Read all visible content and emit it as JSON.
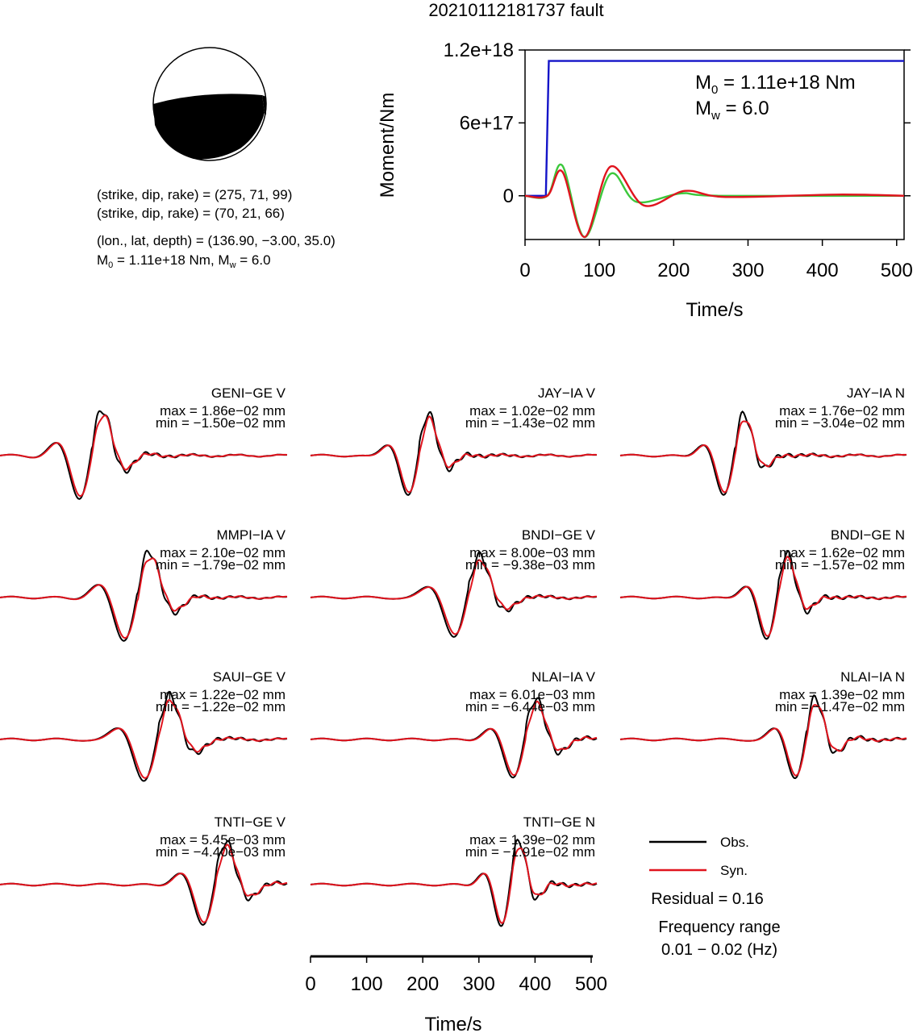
{
  "title": "20210112181737 fault",
  "mechanism": {
    "line1": "(strike, dip, rake) = (275, 71, 99)",
    "line2": "(strike, dip, rake) = (70, 21, 66)",
    "line3": "(lon., lat, depth) = (136.90, −3.00, 35.0)",
    "m0_prefix": "M",
    "m0_sub": "0",
    "m0_text": " = 1.11e+18 Nm, M",
    "mw_sub": "w",
    "mw_text": " = 6.0"
  },
  "stf": {
    "ylabel": "Moment/Nm",
    "xlabel": "Time/s",
    "yticks": [
      "0",
      "6e+17",
      "1.2e+18"
    ],
    "ytick_values": [
      0,
      6e+17,
      1.2e+18
    ],
    "xticks": [
      "0",
      "100",
      "200",
      "300",
      "400",
      "500"
    ],
    "m0_label_prefix": "M",
    "m0_label_sub": "0",
    "m0_label_rest": " = 1.11e+18 Nm",
    "mw_label_prefix": "M",
    "mw_label_sub": "w",
    "mw_label_rest": " = 6.0"
  },
  "waveforms_axis": {
    "xlabel": "Time/s",
    "xticks": [
      "0",
      "100",
      "200",
      "300",
      "400",
      "500"
    ]
  },
  "stations": [
    {
      "name": "GENI−GE V",
      "max": "max = 1.86e−02 mm",
      "min": "min = −1.50e−02 mm"
    },
    {
      "name": "JAY−IA V",
      "max": "max = 1.02e−02 mm",
      "min": "min = −1.43e−02 mm"
    },
    {
      "name": "JAY−IA N",
      "max": "max = 1.76e−02 mm",
      "min": "min = −3.04e−02 mm"
    },
    {
      "name": "MMPI−IA V",
      "max": "max = 2.10e−02 mm",
      "min": "min = −1.79e−02 mm"
    },
    {
      "name": "BNDI−GE V",
      "max": "max = 8.00e−03 mm",
      "min": "min = −9.38e−03 mm"
    },
    {
      "name": "BNDI−GE N",
      "max": "max = 1.62e−02 mm",
      "min": "min = −1.57e−02 mm"
    },
    {
      "name": "SAUI−GE V",
      "max": "max = 1.22e−02 mm",
      "min": "min = −1.22e−02 mm"
    },
    {
      "name": "NLAI−IA V",
      "max": "max = 6.01e−03 mm",
      "min": "min = −6.44e−03 mm"
    },
    {
      "name": "NLAI−IA N",
      "max": "max = 1.39e−02 mm",
      "min": "min = −1.47e−02 mm"
    },
    {
      "name": "TNTI−GE V",
      "max": "max = 5.45e−03 mm",
      "min": "min = −4.40e−03 mm"
    },
    {
      "name": "TNTI−GE N",
      "max": "max = 1.39e−02 mm",
      "min": "min = −1.91e−02 mm"
    }
  ],
  "legend": {
    "obs_label": "Obs.",
    "syn_label": "Syn.",
    "obs_color": "#000000",
    "syn_color": "#e0141e",
    "residual": "Residual = 0.16",
    "freq_title": "Frequency range",
    "freq_range": "0.01 − 0.02 (Hz)"
  },
  "chart_data": [
    {
      "type": "line",
      "title": "",
      "xlabel": "Time/s",
      "ylabel": "Moment/Nm",
      "xlim": [
        0,
        510
      ],
      "ylim": [
        -3.6e+17,
        1.2e+18
      ],
      "series": [
        {
          "color": "#1414c8",
          "x": [
            0,
            28,
            32,
            510
          ],
          "y": [
            0,
            0,
            1.11e+18,
            1.11e+18
          ]
        },
        {
          "color": "#3cc83c",
          "x": [
            0,
            30,
            50,
            80,
            115,
            150,
            210,
            260,
            510
          ],
          "y": [
            0,
            0,
            2.5e+17,
            -3.4e+17,
            1.8e+17,
            -5e+16,
            2e+16,
            0,
            0
          ]
        },
        {
          "color": "#e0141e",
          "x": [
            0,
            30,
            50,
            80,
            115,
            160,
            215,
            270,
            420,
            510
          ],
          "y": [
            0,
            0,
            2e+17,
            -3.4e+17,
            2.4e+17,
            -8e+16,
            4e+16,
            -1e+16,
            1e+16,
            0
          ]
        }
      ]
    }
  ]
}
